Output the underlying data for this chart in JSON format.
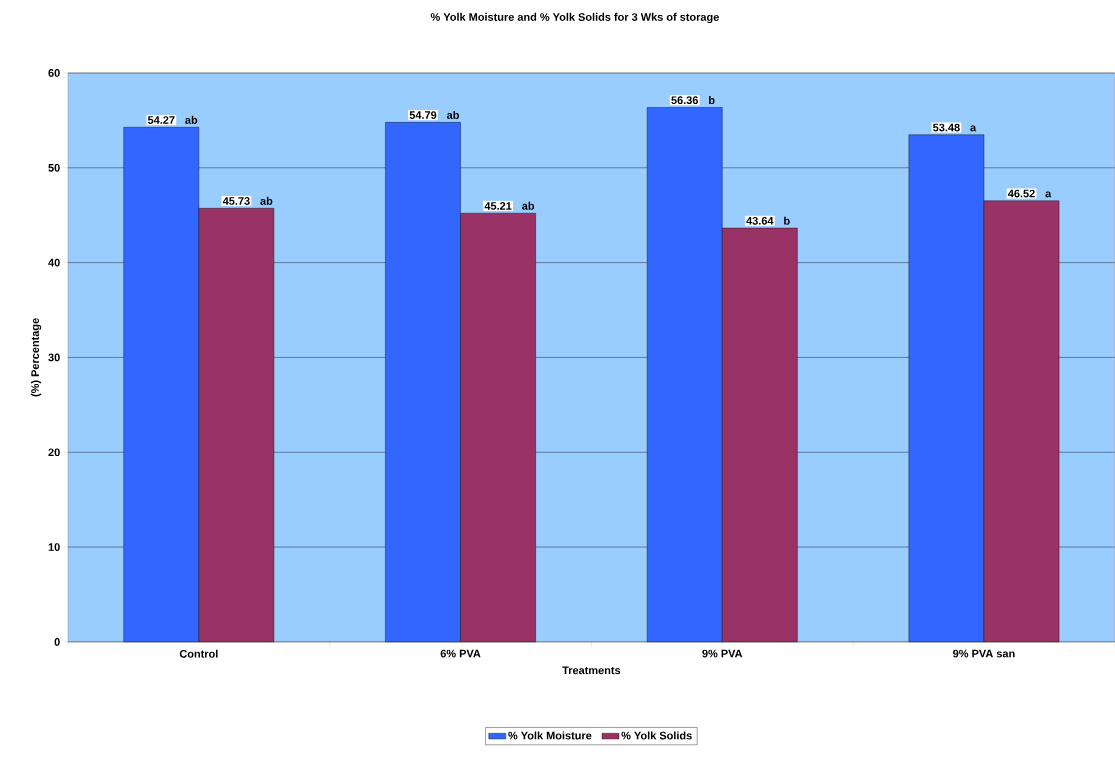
{
  "chart_data": {
    "type": "bar",
    "title": "% Yolk Moisture and % Yolk Solids for 3 Wks of storage",
    "xlabel": "Treatments",
    "ylabel": "(%) Percentage",
    "categories": [
      "Control",
      "6% PVA",
      "9% PVA",
      "9% PVA san"
    ],
    "series": [
      {
        "name": "% Yolk Moisture",
        "color": "#3366ff",
        "values": [
          54.27,
          54.79,
          56.36,
          53.48
        ]
      },
      {
        "name": "% Yolk Solids",
        "color": "#993366",
        "values": [
          45.73,
          45.21,
          43.64,
          46.52
        ]
      }
    ],
    "ylim": [
      0,
      60
    ],
    "yticks": [
      0,
      10,
      20,
      30,
      40,
      50,
      60
    ],
    "grid": "y",
    "legend": "bottom",
    "data_labels": true,
    "annotations": [
      "ab",
      "ab",
      "ab",
      "ab",
      "b",
      "b",
      "a",
      "a"
    ]
  }
}
